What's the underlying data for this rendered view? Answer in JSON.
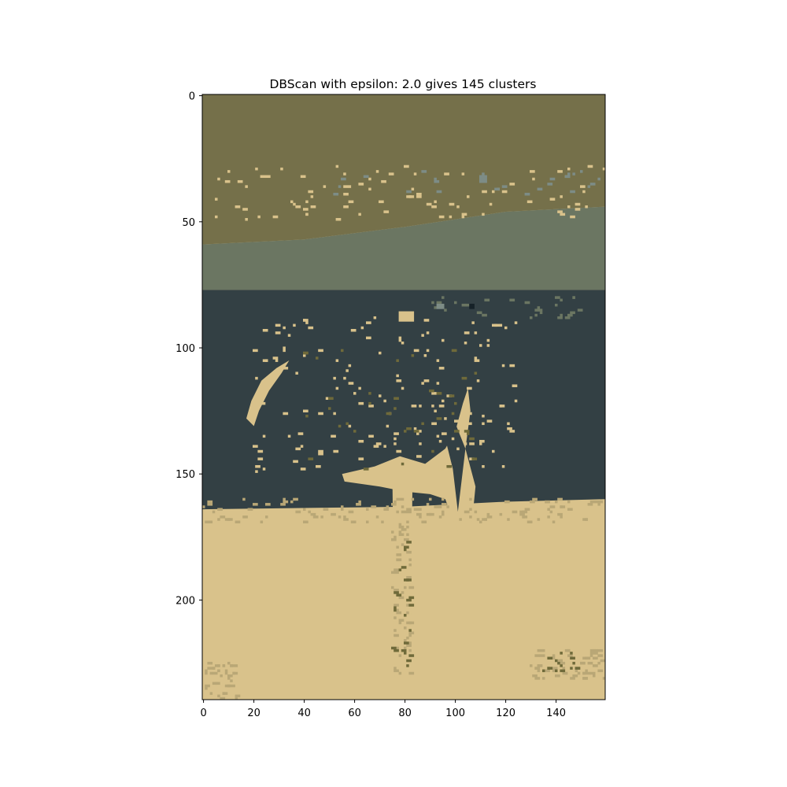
{
  "chart_data": {
    "type": "heatmap",
    "title": "DBScan with epsilon: 2.0 gives 145 clusters",
    "xlabel": "",
    "ylabel": "",
    "image_width": 160,
    "image_height": 240,
    "xlim": [
      -0.5,
      159.5
    ],
    "ylim": [
      239.5,
      -0.5
    ],
    "x_ticks": [
      0,
      20,
      40,
      60,
      80,
      100,
      120,
      140
    ],
    "y_ticks": [
      0,
      50,
      100,
      150,
      200
    ],
    "grid": false,
    "legend": "none",
    "cluster_colors": {
      "sky": "#75704a",
      "horizon_band": "#6b7662",
      "sea_dark": "#334044",
      "sand": "#d9c28b",
      "shadow_sand": "#b9a776",
      "olive_speck": "#6f6a3a",
      "grey_speck": "#7d8c86",
      "dark_speck": "#162228"
    },
    "regions": [
      {
        "cluster": "sky",
        "rows": [
          0,
          45
        ],
        "cols": [
          0,
          160
        ]
      },
      {
        "cluster": "horizon_band",
        "rows": [
          45,
          77
        ],
        "cols": [
          0,
          160
        ]
      },
      {
        "cluster": "sea_dark",
        "rows": [
          77,
          165
        ],
        "cols": [
          0,
          160
        ]
      },
      {
        "cluster": "sand",
        "rows": [
          165,
          240
        ],
        "cols": [
          0,
          160
        ]
      }
    ]
  }
}
